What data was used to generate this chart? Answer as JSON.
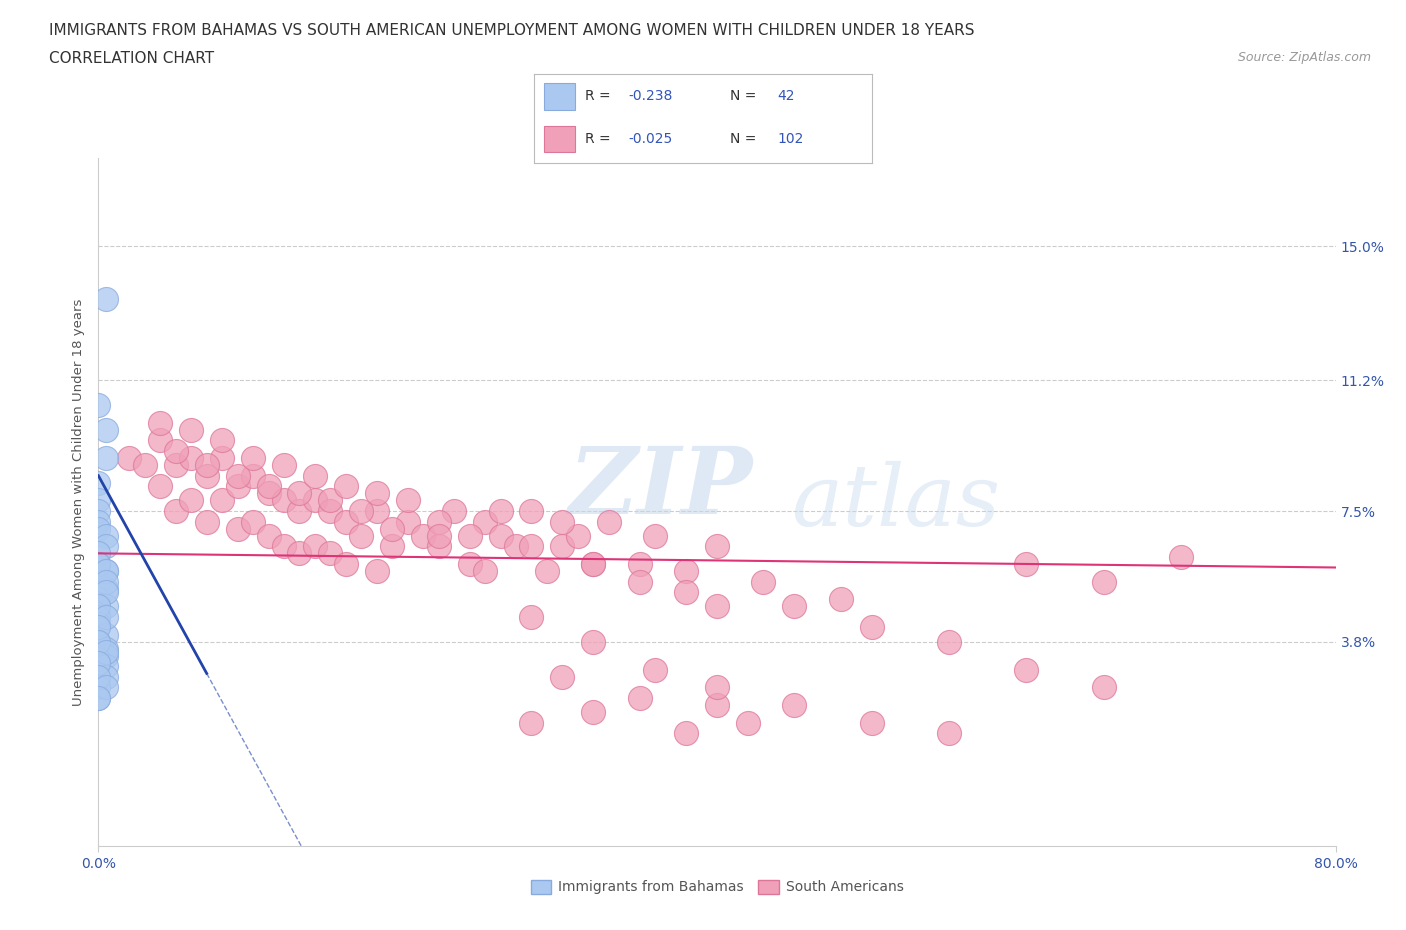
{
  "title_line1": "IMMIGRANTS FROM BAHAMAS VS SOUTH AMERICAN UNEMPLOYMENT AMONG WOMEN WITH CHILDREN UNDER 18 YEARS",
  "title_line2": "CORRELATION CHART",
  "source_text": "Source: ZipAtlas.com",
  "ylabel": "Unemployment Among Women with Children Under 18 years",
  "xlim": [
    0.0,
    0.8
  ],
  "ylim": [
    -0.02,
    0.175
  ],
  "ytick_positions": [
    0.038,
    0.075,
    0.112,
    0.15
  ],
  "ytick_labels": [
    "3.8%",
    "7.5%",
    "11.2%",
    "15.0%"
  ],
  "grid_color": "#cccccc",
  "background_color": "#ffffff",
  "bahamas_color": "#aac8f0",
  "bahamas_edge_color": "#88aadd",
  "south_american_color": "#f0a0b8",
  "south_american_edge_color": "#dd7799",
  "bahamas_line_color": "#2244aa",
  "south_american_line_color": "#dd3377",
  "R_bahamas": -0.238,
  "N_bahamas": 42,
  "R_south_american": -0.025,
  "N_south_american": 102,
  "watermark_text_1": "ZIP",
  "watermark_text_2": "atlas",
  "legend_label_1": "Immigrants from Bahamas",
  "legend_label_2": "South Americans",
  "bahamas_points_x": [
    0.005,
    0.0,
    0.005,
    0.005,
    0.0,
    0.0,
    0.0,
    0.0,
    0.0,
    0.005,
    0.005,
    0.0,
    0.0,
    0.005,
    0.0,
    0.005,
    0.0,
    0.005,
    0.0,
    0.0,
    0.005,
    0.0,
    0.005,
    0.005,
    0.0,
    0.005,
    0.005,
    0.0,
    0.0,
    0.0,
    0.005,
    0.005,
    0.005,
    0.0,
    0.005,
    0.0,
    0.0,
    0.005,
    0.0,
    0.0,
    0.005,
    0.0
  ],
  "bahamas_points_y": [
    0.135,
    0.105,
    0.098,
    0.09,
    0.083,
    0.078,
    0.075,
    0.072,
    0.07,
    0.068,
    0.065,
    0.063,
    0.06,
    0.058,
    0.055,
    0.053,
    0.05,
    0.048,
    0.045,
    0.043,
    0.04,
    0.038,
    0.036,
    0.034,
    0.033,
    0.031,
    0.028,
    0.025,
    0.022,
    0.06,
    0.058,
    0.055,
    0.052,
    0.048,
    0.045,
    0.042,
    0.038,
    0.035,
    0.032,
    0.028,
    0.025,
    0.022
  ],
  "south_american_points_x": [
    0.02,
    0.03,
    0.04,
    0.04,
    0.05,
    0.05,
    0.06,
    0.06,
    0.07,
    0.07,
    0.08,
    0.08,
    0.09,
    0.09,
    0.1,
    0.1,
    0.11,
    0.11,
    0.12,
    0.12,
    0.13,
    0.13,
    0.14,
    0.14,
    0.15,
    0.15,
    0.16,
    0.16,
    0.17,
    0.18,
    0.18,
    0.19,
    0.2,
    0.21,
    0.22,
    0.23,
    0.24,
    0.25,
    0.26,
    0.27,
    0.28,
    0.29,
    0.3,
    0.31,
    0.32,
    0.33,
    0.35,
    0.36,
    0.38,
    0.4,
    0.04,
    0.05,
    0.06,
    0.07,
    0.08,
    0.09,
    0.1,
    0.11,
    0.12,
    0.13,
    0.14,
    0.15,
    0.16,
    0.17,
    0.18,
    0.19,
    0.2,
    0.22,
    0.24,
    0.26,
    0.28,
    0.3,
    0.32,
    0.35,
    0.38,
    0.4,
    0.43,
    0.45,
    0.48,
    0.5,
    0.55,
    0.6,
    0.65,
    0.3,
    0.35,
    0.4,
    0.28,
    0.32,
    0.38,
    0.42,
    0.22,
    0.25,
    0.28,
    0.32,
    0.36,
    0.4,
    0.45,
    0.5,
    0.55,
    0.6,
    0.65,
    0.7
  ],
  "south_american_points_y": [
    0.09,
    0.088,
    0.095,
    0.082,
    0.088,
    0.075,
    0.09,
    0.078,
    0.085,
    0.072,
    0.09,
    0.078,
    0.082,
    0.07,
    0.085,
    0.072,
    0.08,
    0.068,
    0.078,
    0.065,
    0.075,
    0.063,
    0.078,
    0.065,
    0.075,
    0.063,
    0.072,
    0.06,
    0.068,
    0.075,
    0.058,
    0.065,
    0.072,
    0.068,
    0.065,
    0.075,
    0.06,
    0.072,
    0.068,
    0.065,
    0.075,
    0.058,
    0.065,
    0.068,
    0.06,
    0.072,
    0.06,
    0.068,
    0.058,
    0.065,
    0.1,
    0.092,
    0.098,
    0.088,
    0.095,
    0.085,
    0.09,
    0.082,
    0.088,
    0.08,
    0.085,
    0.078,
    0.082,
    0.075,
    0.08,
    0.07,
    0.078,
    0.072,
    0.068,
    0.075,
    0.065,
    0.072,
    0.06,
    0.055,
    0.052,
    0.048,
    0.055,
    0.048,
    0.05,
    0.042,
    0.038,
    0.03,
    0.025,
    0.028,
    0.022,
    0.02,
    0.015,
    0.018,
    0.012,
    0.015,
    0.068,
    0.058,
    0.045,
    0.038,
    0.03,
    0.025,
    0.02,
    0.015,
    0.012,
    0.06,
    0.055,
    0.062
  ]
}
